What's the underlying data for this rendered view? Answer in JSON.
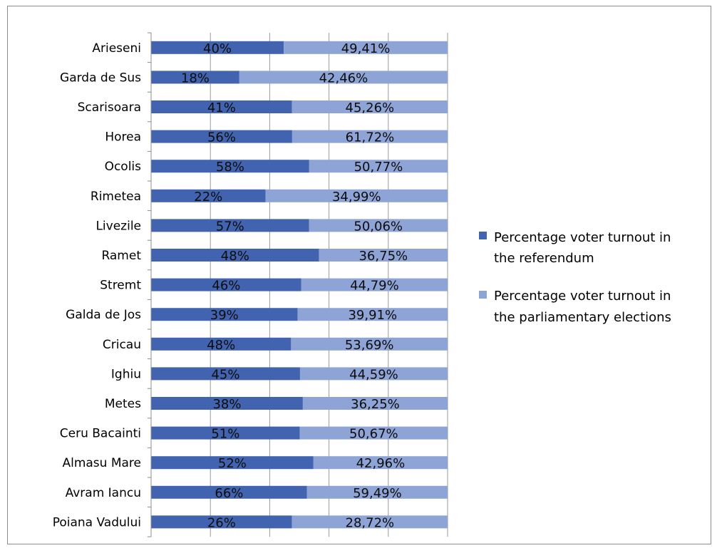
{
  "chart_data": {
    "type": "bar",
    "orientation": "horizontal",
    "stacked": "percent",
    "categories": [
      "Arieseni",
      "Garda de Sus",
      "Scarisoara",
      "Horea",
      "Ocolis",
      "Rimetea",
      "Livezile",
      "Ramet",
      "Stremt",
      "Galda de Jos",
      "Cricau",
      "Ighiu",
      "Metes",
      "Ceru Bacainti",
      "Almasu Mare",
      "Avram Iancu",
      "Poiana Vadului"
    ],
    "series": [
      {
        "name": "Percentage voter turnout in the referendum",
        "color": "#4264b0",
        "values": [
          40,
          18,
          41,
          56,
          58,
          22,
          57,
          48,
          46,
          39,
          48,
          45,
          38,
          51,
          52,
          66,
          26
        ],
        "labels": [
          "40%",
          "18%",
          "41%",
          "56%",
          "58%",
          "22%",
          "57%",
          "48%",
          "46%",
          "39%",
          "48%",
          "45%",
          "38%",
          "51%",
          "52%",
          "66%",
          "26%"
        ]
      },
      {
        "name": "Percentage voter turnout in the parliamentary elections",
        "color": "#8ea3d6",
        "values": [
          49.41,
          42.46,
          45.26,
          61.72,
          50.77,
          34.99,
          50.06,
          36.75,
          44.79,
          39.91,
          53.69,
          44.59,
          36.25,
          50.67,
          42.96,
          59.49,
          28.72
        ],
        "labels": [
          "49,41%",
          "42,46%",
          "45,26%",
          "61,72%",
          "50,77%",
          "34,99%",
          "50,06%",
          "36,75%",
          "44,79%",
          "39,91%",
          "53,69%",
          "44,59%",
          "36,25%",
          "50,67%",
          "42,96%",
          "59,49%",
          "28,72%"
        ]
      }
    ],
    "xlim": [
      0,
      1
    ],
    "grid": true,
    "legend_position": "right"
  }
}
